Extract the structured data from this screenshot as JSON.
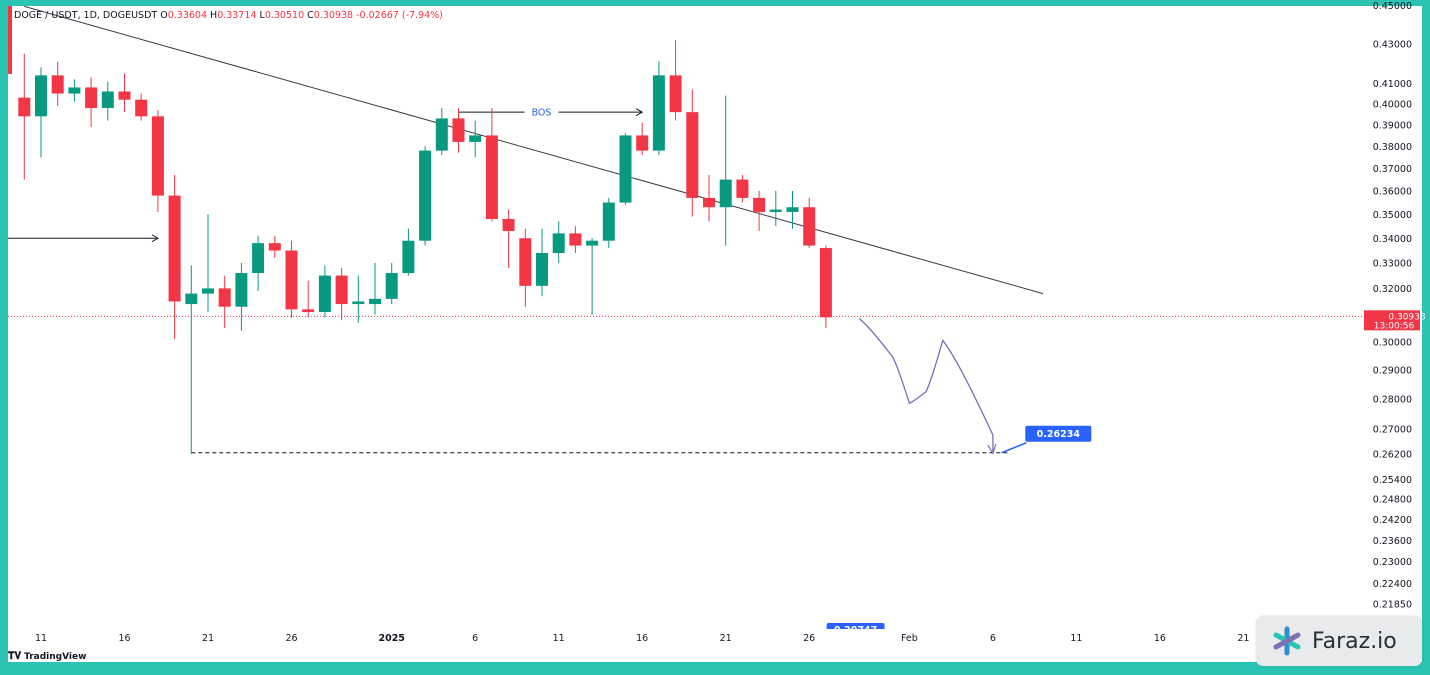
{
  "legend": {
    "symbol": "DOGE / USDT, 1D, DOGEUSDT",
    "o_label": "O",
    "o": "0.33604",
    "h_label": "H",
    "h": "0.33714",
    "l_label": "L",
    "l": "0.30510",
    "c_label": "C",
    "c": "0.30938",
    "change": "-0.02667 (-7.94%)"
  },
  "colors": {
    "up": "#089981",
    "down": "#f23645",
    "trendline": "#363a45",
    "projection": "#7e6fb2",
    "label_bg": "#2962ff"
  },
  "chart_data": {
    "type": "candlestick",
    "symbol": "DOGEUSDT",
    "timeframe": "1D",
    "ylim": [
      0.2155,
      0.435
    ],
    "y_scale": "log",
    "y_ticks": [
      "0.43000",
      "0.41000",
      "0.40000",
      "0.39000",
      "0.38000",
      "0.37000",
      "0.36000",
      "0.35000",
      "0.34000",
      "0.33000",
      "0.32000",
      "0.30000",
      "0.29000",
      "0.28000",
      "0.27000",
      "0.26200",
      "0.25400",
      "0.24800",
      "0.24200",
      "0.23600",
      "0.23000",
      "0.22400",
      "0.21850"
    ],
    "x_ticks": [
      "11",
      "16",
      "21",
      "26",
      "2025",
      "6",
      "11",
      "16",
      "21",
      "26",
      "Feb",
      "6",
      "11",
      "16",
      "21"
    ],
    "candles": [
      {
        "d": "2024-12-10",
        "o": 0.403,
        "h": 0.425,
        "l": 0.365,
        "c": 0.394
      },
      {
        "d": "2024-12-11",
        "o": 0.394,
        "h": 0.418,
        "l": 0.375,
        "c": 0.414
      },
      {
        "d": "2024-12-12",
        "o": 0.414,
        "h": 0.421,
        "l": 0.399,
        "c": 0.405
      },
      {
        "d": "2024-12-13",
        "o": 0.405,
        "h": 0.412,
        "l": 0.401,
        "c": 0.408
      },
      {
        "d": "2024-12-14",
        "o": 0.408,
        "h": 0.413,
        "l": 0.389,
        "c": 0.398
      },
      {
        "d": "2024-12-15",
        "o": 0.398,
        "h": 0.411,
        "l": 0.392,
        "c": 0.406
      },
      {
        "d": "2024-12-16",
        "o": 0.406,
        "h": 0.415,
        "l": 0.396,
        "c": 0.402
      },
      {
        "d": "2024-12-17",
        "o": 0.402,
        "h": 0.405,
        "l": 0.392,
        "c": 0.394
      },
      {
        "d": "2024-12-18",
        "o": 0.394,
        "h": 0.397,
        "l": 0.351,
        "c": 0.358
      },
      {
        "d": "2024-12-19",
        "o": 0.358,
        "h": 0.367,
        "l": 0.301,
        "c": 0.315
      },
      {
        "d": "2024-12-20",
        "o": 0.314,
        "h": 0.329,
        "l": 0.262,
        "c": 0.318
      },
      {
        "d": "2024-12-21",
        "o": 0.318,
        "h": 0.35,
        "l": 0.311,
        "c": 0.32
      },
      {
        "d": "2024-12-22",
        "o": 0.32,
        "h": 0.325,
        "l": 0.305,
        "c": 0.313
      },
      {
        "d": "2024-12-23",
        "o": 0.313,
        "h": 0.33,
        "l": 0.304,
        "c": 0.326
      },
      {
        "d": "2024-12-24",
        "o": 0.326,
        "h": 0.341,
        "l": 0.319,
        "c": 0.338
      },
      {
        "d": "2024-12-25",
        "o": 0.338,
        "h": 0.341,
        "l": 0.332,
        "c": 0.335
      },
      {
        "d": "2024-12-26",
        "o": 0.335,
        "h": 0.339,
        "l": 0.309,
        "c": 0.312
      },
      {
        "d": "2024-12-27",
        "o": 0.312,
        "h": 0.323,
        "l": 0.309,
        "c": 0.311
      },
      {
        "d": "2024-12-28",
        "o": 0.311,
        "h": 0.329,
        "l": 0.309,
        "c": 0.325
      },
      {
        "d": "2024-12-29",
        "o": 0.325,
        "h": 0.328,
        "l": 0.308,
        "c": 0.314
      },
      {
        "d": "2024-12-30",
        "o": 0.314,
        "h": 0.325,
        "l": 0.307,
        "c": 0.315
      },
      {
        "d": "2024-12-31",
        "o": 0.314,
        "h": 0.33,
        "l": 0.31,
        "c": 0.316
      },
      {
        "d": "2025-01-01",
        "o": 0.316,
        "h": 0.33,
        "l": 0.314,
        "c": 0.326
      },
      {
        "d": "2025-01-02",
        "o": 0.326,
        "h": 0.344,
        "l": 0.325,
        "c": 0.339
      },
      {
        "d": "2025-01-03",
        "o": 0.339,
        "h": 0.38,
        "l": 0.337,
        "c": 0.378
      },
      {
        "d": "2025-01-04",
        "o": 0.378,
        "h": 0.398,
        "l": 0.376,
        "c": 0.393
      },
      {
        "d": "2025-01-05",
        "o": 0.393,
        "h": 0.398,
        "l": 0.377,
        "c": 0.382
      },
      {
        "d": "2025-01-06",
        "o": 0.382,
        "h": 0.392,
        "l": 0.375,
        "c": 0.385
      },
      {
        "d": "2025-01-07",
        "o": 0.385,
        "h": 0.398,
        "l": 0.347,
        "c": 0.348
      },
      {
        "d": "2025-01-08",
        "o": 0.348,
        "h": 0.352,
        "l": 0.328,
        "c": 0.343
      },
      {
        "d": "2025-01-09",
        "o": 0.34,
        "h": 0.344,
        "l": 0.313,
        "c": 0.321
      },
      {
        "d": "2025-01-10",
        "o": 0.321,
        "h": 0.344,
        "l": 0.317,
        "c": 0.334
      },
      {
        "d": "2025-01-11",
        "o": 0.334,
        "h": 0.347,
        "l": 0.33,
        "c": 0.342
      },
      {
        "d": "2025-01-12",
        "o": 0.342,
        "h": 0.345,
        "l": 0.334,
        "c": 0.337
      },
      {
        "d": "2025-01-13",
        "o": 0.337,
        "h": 0.34,
        "l": 0.31,
        "c": 0.339
      },
      {
        "d": "2025-01-14",
        "o": 0.339,
        "h": 0.357,
        "l": 0.336,
        "c": 0.355
      },
      {
        "d": "2025-01-15",
        "o": 0.355,
        "h": 0.386,
        "l": 0.354,
        "c": 0.385
      },
      {
        "d": "2025-01-16",
        "o": 0.385,
        "h": 0.391,
        "l": 0.376,
        "c": 0.378
      },
      {
        "d": "2025-01-17",
        "o": 0.378,
        "h": 0.421,
        "l": 0.376,
        "c": 0.414
      },
      {
        "d": "2025-01-18",
        "o": 0.414,
        "h": 0.432,
        "l": 0.392,
        "c": 0.396
      },
      {
        "d": "2025-01-19",
        "o": 0.396,
        "h": 0.407,
        "l": 0.349,
        "c": 0.357
      },
      {
        "d": "2025-01-20",
        "o": 0.357,
        "h": 0.367,
        "l": 0.347,
        "c": 0.353
      },
      {
        "d": "2025-01-21",
        "o": 0.353,
        "h": 0.404,
        "l": 0.337,
        "c": 0.365
      },
      {
        "d": "2025-01-22",
        "o": 0.365,
        "h": 0.367,
        "l": 0.355,
        "c": 0.357
      },
      {
        "d": "2025-01-23",
        "o": 0.357,
        "h": 0.36,
        "l": 0.343,
        "c": 0.351
      },
      {
        "d": "2025-01-24",
        "o": 0.351,
        "h": 0.36,
        "l": 0.345,
        "c": 0.352
      },
      {
        "d": "2025-01-25",
        "o": 0.351,
        "h": 0.36,
        "l": 0.344,
        "c": 0.353
      },
      {
        "d": "2025-01-26",
        "o": 0.353,
        "h": 0.357,
        "l": 0.336,
        "c": 0.337
      },
      {
        "d": "2025-01-27",
        "o": 0.336,
        "h": 0.337,
        "l": 0.305,
        "c": 0.309
      }
    ],
    "current_price": "0.30938",
    "countdown": "13:00:56",
    "trendline": {
      "from": {
        "d": "2024-12-10",
        "p": 0.45
      },
      "to": {
        "d": "2025-02-09",
        "p": 0.318
      }
    },
    "target": {
      "price": 0.26234,
      "label": "0.26234",
      "from_d": "2024-12-20",
      "to_d": "2025-02-07"
    },
    "annotations": [
      {
        "type": "bos",
        "label": "BOS",
        "price": 0.396,
        "from_d": "2025-01-05",
        "to_d": "2025-01-16"
      },
      {
        "type": "arrow",
        "price": 0.34,
        "from_d": "2024-12-09",
        "to_d": "2024-12-18"
      }
    ],
    "projection_path": [
      {
        "d": "2025-01-29",
        "p": 0.3085
      },
      {
        "d": "2025-01-31",
        "p": 0.2945
      },
      {
        "d": "2025-02-01",
        "p": 0.2785
      },
      {
        "d": "2025-02-02",
        "p": 0.2825
      },
      {
        "d": "2025-02-03",
        "p": 0.3005
      },
      {
        "d": "2025-02-06",
        "p": 0.268
      },
      {
        "d": "2025-02-06",
        "p": 0.2622
      }
    ],
    "bottom_label": "0.20747"
  },
  "branding": {
    "tradingview": "TradingView",
    "faraz": "Faraz.io"
  }
}
